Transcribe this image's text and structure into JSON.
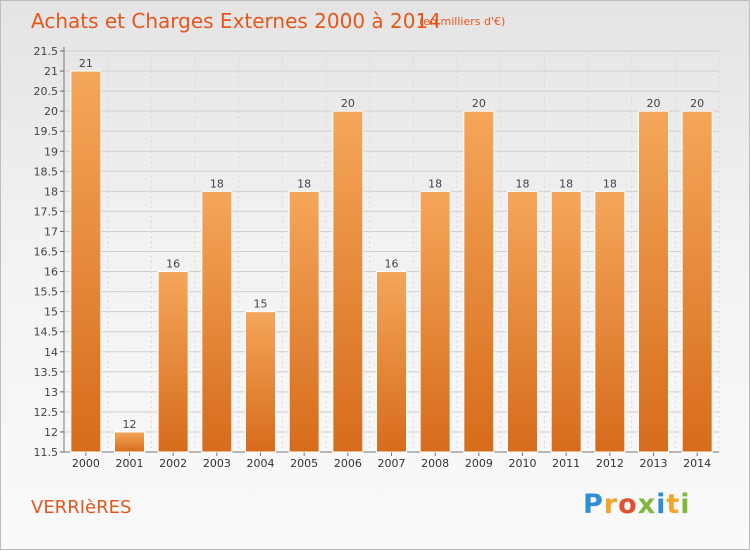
{
  "header": {
    "title": "Achats et Charges Externes 2000 à 2014",
    "subtitle": "(en milliers d'€)"
  },
  "footer": {
    "town": "VERRIèRES",
    "logo": [
      "P",
      "r",
      "o",
      "x",
      "i",
      "t",
      "i"
    ]
  },
  "colors": {
    "title": "#e6561b",
    "bar_top": "#f5a65a",
    "bar_bottom": "#d86f1e",
    "grid": "#cfcfcf"
  },
  "chart_data": {
    "type": "bar",
    "categories": [
      "2000",
      "2001",
      "2002",
      "2003",
      "2004",
      "2005",
      "2006",
      "2007",
      "2008",
      "2009",
      "2010",
      "2011",
      "2012",
      "2013",
      "2014"
    ],
    "values": [
      21,
      12,
      16,
      18,
      15,
      18,
      20,
      16,
      18,
      20,
      18,
      18,
      18,
      20,
      20
    ],
    "ylim": [
      11.5,
      21.5
    ],
    "yticks": [
      "11.5",
      "12",
      "12.5",
      "13",
      "13.5",
      "14",
      "14.5",
      "15",
      "15.5",
      "16",
      "16.5",
      "17",
      "17.5",
      "18",
      "18.5",
      "19",
      "19.5",
      "20",
      "20.5",
      "21",
      "21.5"
    ],
    "grid": true,
    "xlabel": "",
    "ylabel": ""
  }
}
